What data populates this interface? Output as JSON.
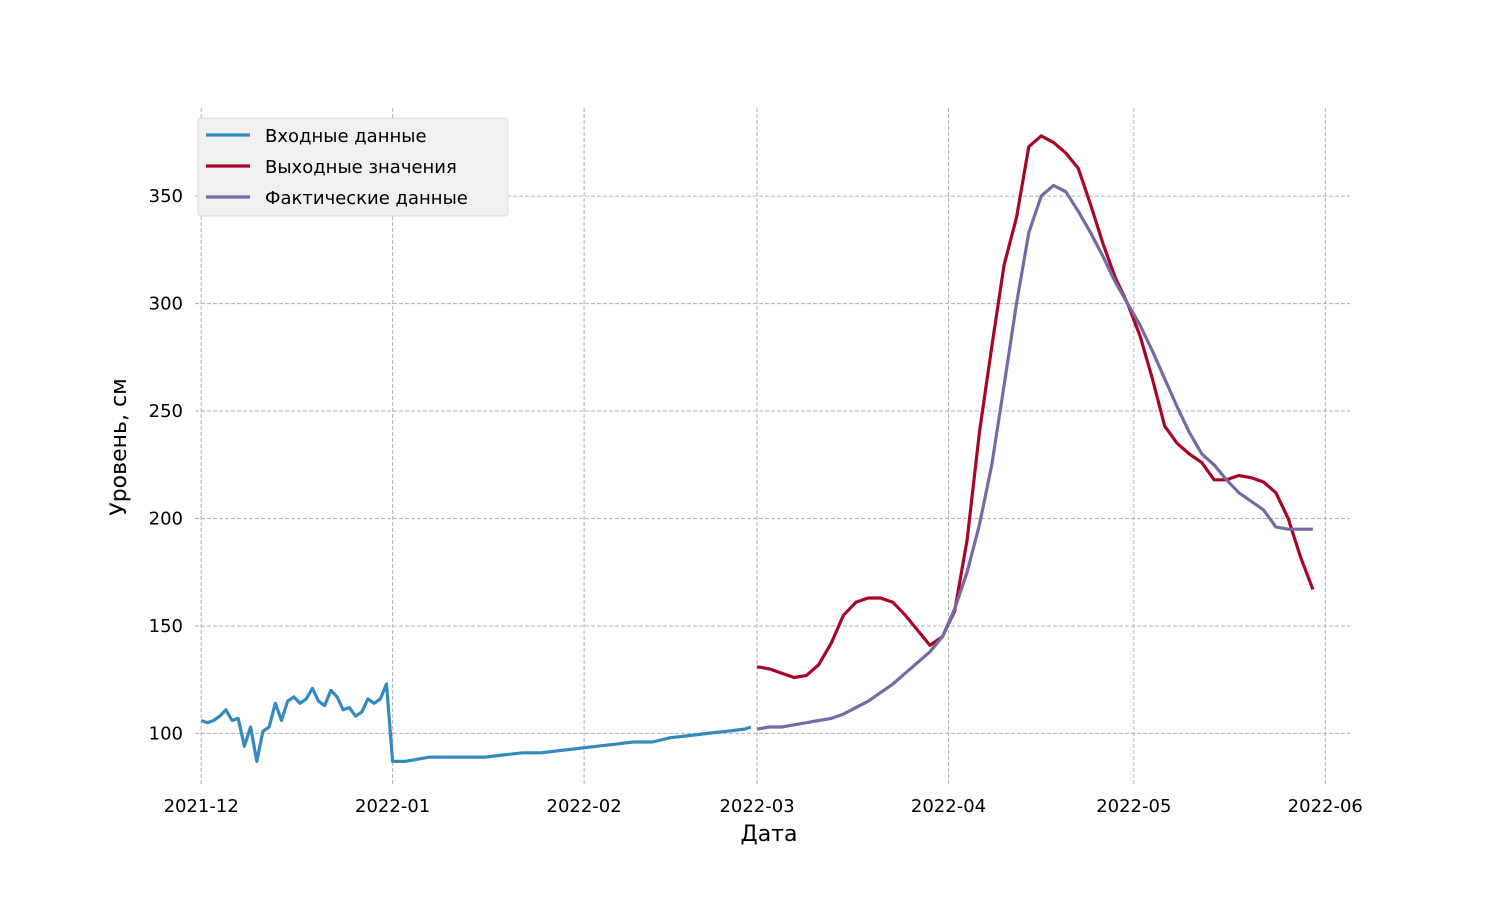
{
  "chart_data": {
    "type": "line",
    "title": "",
    "xlabel": "Дата",
    "ylabel": "Уровень, см",
    "xlim": [
      "2021-11-30",
      "2022-06-05"
    ],
    "ylim": [
      76,
      391
    ],
    "grid": true,
    "legend_position": "top-left",
    "x_ticks": [
      {
        "date": "2021-12-01",
        "label": "2021-12"
      },
      {
        "date": "2022-01-01",
        "label": "2022-01"
      },
      {
        "date": "2022-02-01",
        "label": "2022-02"
      },
      {
        "date": "2022-03-01",
        "label": "2022-03"
      },
      {
        "date": "2022-04-01",
        "label": "2022-04"
      },
      {
        "date": "2022-05-01",
        "label": "2022-05"
      },
      {
        "date": "2022-06-01",
        "label": "2022-06"
      }
    ],
    "y_ticks": [
      100,
      150,
      200,
      250,
      300,
      350
    ],
    "series": [
      {
        "name": "Входные данные",
        "color": "#348ABD",
        "x": [
          "2021-12-01",
          "2021-12-02",
          "2021-12-03",
          "2021-12-04",
          "2021-12-05",
          "2021-12-06",
          "2021-12-07",
          "2021-12-08",
          "2021-12-09",
          "2021-12-10",
          "2021-12-11",
          "2021-12-12",
          "2021-12-13",
          "2021-12-14",
          "2021-12-15",
          "2021-12-16",
          "2021-12-17",
          "2021-12-18",
          "2021-12-19",
          "2021-12-20",
          "2021-12-21",
          "2021-12-22",
          "2021-12-23",
          "2021-12-24",
          "2021-12-25",
          "2021-12-26",
          "2021-12-27",
          "2021-12-28",
          "2021-12-29",
          "2021-12-30",
          "2021-12-31",
          "2022-01-01",
          "2022-01-03",
          "2022-01-05",
          "2022-01-07",
          "2022-01-10",
          "2022-01-13",
          "2022-01-16",
          "2022-01-19",
          "2022-01-22",
          "2022-01-25",
          "2022-01-28",
          "2022-01-31",
          "2022-02-03",
          "2022-02-06",
          "2022-02-09",
          "2022-02-12",
          "2022-02-15",
          "2022-02-18",
          "2022-02-21",
          "2022-02-24",
          "2022-02-27",
          "2022-02-28"
        ],
        "y": [
          106,
          105,
          106,
          108,
          111,
          106,
          107,
          94,
          103,
          87,
          101,
          103,
          114,
          106,
          115,
          117,
          114,
          116,
          121,
          115,
          113,
          120,
          117,
          111,
          112,
          108,
          110,
          116,
          114,
          116,
          123,
          87,
          87,
          88,
          89,
          89,
          89,
          89,
          90,
          91,
          91,
          92,
          93,
          94,
          95,
          96,
          96,
          98,
          99,
          100,
          101,
          102,
          103
        ]
      },
      {
        "name": "Выходные значения",
        "color": "#A60628",
        "x": [
          "2022-03-01",
          "2022-03-03",
          "2022-03-05",
          "2022-03-07",
          "2022-03-09",
          "2022-03-11",
          "2022-03-13",
          "2022-03-15",
          "2022-03-17",
          "2022-03-19",
          "2022-03-21",
          "2022-03-23",
          "2022-03-25",
          "2022-03-27",
          "2022-03-29",
          "2022-03-31",
          "2022-04-02",
          "2022-04-04",
          "2022-04-06",
          "2022-04-08",
          "2022-04-10",
          "2022-04-12",
          "2022-04-14",
          "2022-04-16",
          "2022-04-18",
          "2022-04-20",
          "2022-04-22",
          "2022-04-24",
          "2022-04-26",
          "2022-04-28",
          "2022-04-30",
          "2022-05-02",
          "2022-05-04",
          "2022-05-06",
          "2022-05-08",
          "2022-05-10",
          "2022-05-12",
          "2022-05-14",
          "2022-05-16",
          "2022-05-18",
          "2022-05-20",
          "2022-05-22",
          "2022-05-24",
          "2022-05-26",
          "2022-05-28",
          "2022-05-30"
        ],
        "y": [
          131,
          130,
          128,
          126,
          127,
          132,
          142,
          155,
          161,
          163,
          163,
          161,
          155,
          148,
          141,
          145,
          157,
          190,
          240,
          280,
          318,
          340,
          373,
          378,
          375,
          370,
          363,
          346,
          328,
          312,
          300,
          285,
          265,
          243,
          235,
          230,
          226,
          218,
          218,
          220,
          219,
          217,
          212,
          200,
          182,
          167
        ]
      },
      {
        "name": "Фактические данные",
        "color": "#7A68A6",
        "x": [
          "2022-03-01",
          "2022-03-03",
          "2022-03-05",
          "2022-03-07",
          "2022-03-09",
          "2022-03-11",
          "2022-03-13",
          "2022-03-15",
          "2022-03-17",
          "2022-03-19",
          "2022-03-21",
          "2022-03-23",
          "2022-03-25",
          "2022-03-27",
          "2022-03-29",
          "2022-03-31",
          "2022-04-02",
          "2022-04-04",
          "2022-04-06",
          "2022-04-08",
          "2022-04-10",
          "2022-04-12",
          "2022-04-14",
          "2022-04-16",
          "2022-04-18",
          "2022-04-20",
          "2022-04-22",
          "2022-04-24",
          "2022-04-26",
          "2022-04-28",
          "2022-04-30",
          "2022-05-02",
          "2022-05-04",
          "2022-05-06",
          "2022-05-08",
          "2022-05-10",
          "2022-05-12",
          "2022-05-14",
          "2022-05-16",
          "2022-05-18",
          "2022-05-20",
          "2022-05-22",
          "2022-05-24",
          "2022-05-26",
          "2022-05-28",
          "2022-05-30"
        ],
        "y": [
          102,
          103,
          103,
          104,
          105,
          106,
          107,
          109,
          112,
          115,
          119,
          123,
          128,
          133,
          138,
          145,
          158,
          175,
          197,
          225,
          262,
          300,
          333,
          350,
          355,
          352,
          343,
          333,
          322,
          310,
          300,
          290,
          278,
          265,
          252,
          240,
          230,
          225,
          218,
          212,
          208,
          204,
          196,
          195,
          195,
          195
        ]
      }
    ]
  }
}
